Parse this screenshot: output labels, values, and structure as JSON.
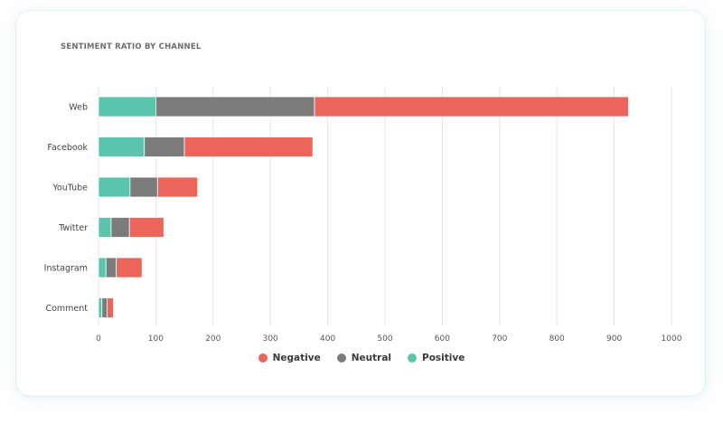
{
  "chart_data": {
    "type": "bar",
    "orientation": "horizontal",
    "stacked": true,
    "title": "SENTIMENT RATIO BY CHANNEL",
    "categories": [
      "Web",
      "Facebook",
      "YouTube",
      "Twitter",
      "Instagram",
      "Comment"
    ],
    "series": [
      {
        "name": "Positive",
        "color": "#5ac4ad",
        "values": [
          100,
          80,
          55,
          22,
          13,
          6
        ]
      },
      {
        "name": "Neutral",
        "color": "#7b7b7b",
        "values": [
          277,
          70,
          48,
          32,
          18,
          9
        ]
      },
      {
        "name": "Negative",
        "color": "#eb655a",
        "values": [
          548,
          224,
          70,
          60,
          45,
          11
        ]
      }
    ],
    "xlim": [
      0,
      1000
    ],
    "xticks": [
      0,
      100,
      200,
      300,
      400,
      500,
      600,
      700,
      800,
      900,
      1000
    ],
    "grid": true,
    "legend_position": "bottom-center",
    "legend_order": [
      "Negative",
      "Neutral",
      "Positive"
    ]
  }
}
